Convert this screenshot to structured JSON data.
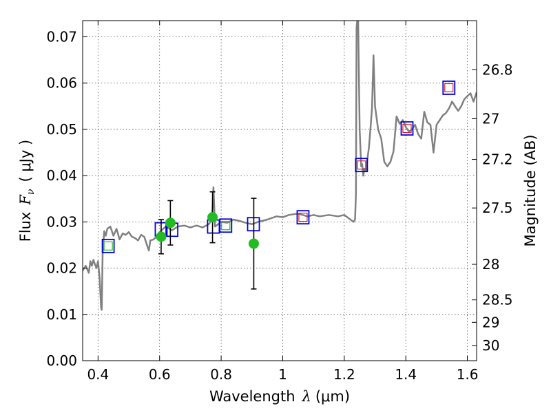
{
  "chart_data": {
    "type": "scatter",
    "xlabel": "Wavelength",
    "xlabel_symbol": "λ",
    "xlabel_unit": "(μm)",
    "ylabel": "Flux",
    "ylabel_symbol": "F",
    "ylabel_subscript": "ν",
    "ylabel_unit": "( μJy )",
    "ylabel_right": "Magnitude (AB)",
    "xlim": [
      0.35,
      1.63
    ],
    "ylim": [
      0.0,
      0.0735
    ],
    "x_ticks": [
      0.4,
      0.6,
      0.8,
      1.0,
      1.2,
      1.4,
      1.6
    ],
    "x_tick_labels": [
      "0.4",
      "0.6",
      "0.8",
      "1",
      "1.2",
      "1.4",
      "1.6"
    ],
    "y_ticks": [
      0.0,
      0.01,
      0.02,
      0.03,
      0.04,
      0.05,
      0.06,
      0.07
    ],
    "y_tick_labels": [
      "0.00",
      "0.01",
      "0.02",
      "0.03",
      "0.04",
      "0.05",
      "0.06",
      "0.07"
    ],
    "right_ticks": [
      {
        "label": "26.8",
        "value": 26.8
      },
      {
        "label": "27",
        "value": 27.0
      },
      {
        "label": "27.2",
        "value": 27.2
      },
      {
        "label": "27.5",
        "value": 27.5
      },
      {
        "label": "28",
        "value": 28.0
      },
      {
        "label": "28.5",
        "value": 28.5
      },
      {
        "label": "29",
        "value": 29.0
      },
      {
        "label": "30",
        "value": 30.0
      }
    ],
    "grid": true,
    "colors": {
      "spectrum": "#808080",
      "green": "#22bb22",
      "blue": "#0000dd",
      "red": "#dd2222",
      "error": "#000000"
    },
    "series": [
      {
        "name": "model spectrum",
        "kind": "line",
        "x": [
          0.35,
          0.36,
          0.37,
          0.375,
          0.38,
          0.385,
          0.39,
          0.395,
          0.4,
          0.405,
          0.41,
          0.412,
          0.415,
          0.42,
          0.425,
          0.43,
          0.44,
          0.45,
          0.46,
          0.47,
          0.48,
          0.49,
          0.5,
          0.51,
          0.52,
          0.53,
          0.54,
          0.55,
          0.56,
          0.565,
          0.57,
          0.58,
          0.59,
          0.6,
          0.62,
          0.64,
          0.66,
          0.68,
          0.7,
          0.72,
          0.74,
          0.76,
          0.77,
          0.775,
          0.78,
          0.8,
          0.82,
          0.84,
          0.86,
          0.88,
          0.9,
          0.92,
          0.95,
          0.98,
          1.0,
          1.02,
          1.05,
          1.08,
          1.1,
          1.12,
          1.15,
          1.18,
          1.2,
          1.22,
          1.23,
          1.235,
          1.238,
          1.24,
          1.242,
          1.245,
          1.25,
          1.255,
          1.258,
          1.262,
          1.265,
          1.27,
          1.28,
          1.285,
          1.29,
          1.295,
          1.3,
          1.31,
          1.32,
          1.33,
          1.34,
          1.35,
          1.36,
          1.37,
          1.38,
          1.39,
          1.4,
          1.41,
          1.42,
          1.43,
          1.44,
          1.45,
          1.46,
          1.47,
          1.48,
          1.49,
          1.5,
          1.51,
          1.52,
          1.53,
          1.54,
          1.55,
          1.56,
          1.57,
          1.58,
          1.59,
          1.6,
          1.61,
          1.62,
          1.63
        ],
        "y": [
          0.0195,
          0.0205,
          0.019,
          0.0215,
          0.0205,
          0.0218,
          0.0208,
          0.02,
          0.0215,
          0.018,
          0.0115,
          0.011,
          0.023,
          0.028,
          0.027,
          0.0285,
          0.029,
          0.027,
          0.0285,
          0.0262,
          0.0275,
          0.0272,
          0.0278,
          0.0268,
          0.0265,
          0.026,
          0.0272,
          0.0268,
          0.0248,
          0.0238,
          0.026,
          0.0262,
          0.0268,
          0.0278,
          0.029,
          0.0282,
          0.029,
          0.0292,
          0.0288,
          0.0292,
          0.0288,
          0.0295,
          0.0305,
          0.0375,
          0.029,
          0.03,
          0.0298,
          0.0305,
          0.0302,
          0.0298,
          0.0295,
          0.03,
          0.0305,
          0.0312,
          0.031,
          0.0315,
          0.0318,
          0.0312,
          0.0315,
          0.0312,
          0.0315,
          0.0312,
          0.0315,
          0.0305,
          0.03,
          0.0305,
          0.036,
          0.072,
          0.0735,
          0.0735,
          0.05,
          0.042,
          0.0425,
          0.04,
          0.0415,
          0.041,
          0.046,
          0.05,
          0.0545,
          0.066,
          0.055,
          0.05,
          0.048,
          0.043,
          0.042,
          0.043,
          0.0452,
          0.0528,
          0.0512,
          0.052,
          0.0505,
          0.0495,
          0.05,
          0.051,
          0.049,
          0.048,
          0.0538,
          0.0515,
          0.051,
          0.045,
          0.051,
          0.052,
          0.053,
          0.0535,
          0.0545,
          0.056,
          0.055,
          0.054,
          0.055,
          0.0565,
          0.0572,
          0.0578,
          0.056,
          0.058
        ]
      },
      {
        "name": "green points",
        "kind": "points",
        "x": [
          0.605,
          0.635,
          0.772,
          0.906
        ],
        "y": [
          0.0268,
          0.0298,
          0.031,
          0.0253
        ],
        "yerr": [
          0.0037,
          0.0048,
          0.0055,
          0.0098
        ]
      },
      {
        "name": "blue squares",
        "kind": "squares",
        "x": [
          0.433,
          0.605,
          0.64,
          0.775,
          0.815,
          0.905,
          1.066,
          1.256,
          1.404,
          1.54
        ],
        "y": [
          0.0248,
          0.0284,
          0.0283,
          0.029,
          0.0292,
          0.0295,
          0.031,
          0.0423,
          0.0502,
          0.059
        ],
        "inner": [
          "green",
          "none",
          "none",
          "none",
          "green",
          "none",
          "red",
          "red",
          "red",
          "red"
        ]
      }
    ]
  }
}
